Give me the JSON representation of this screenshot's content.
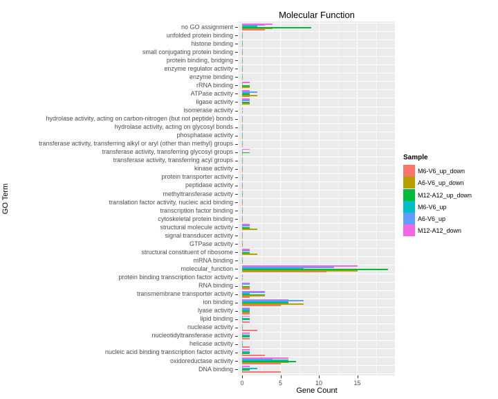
{
  "title": "Molecular Function",
  "axes": {
    "x_label": "Gene Count",
    "y_label": "GO Term",
    "x_major_ticks": [
      0,
      5,
      10,
      15
    ],
    "x_minor_ticks": [
      2.5,
      7.5,
      12.5,
      17.5
    ],
    "x_max": 19.95
  },
  "legend": {
    "title": "Sample"
  },
  "panel_background": "#EBEBEB",
  "gridline_color": "#FFFFFF",
  "tick_text_color": "#4d4d4d",
  "chart_data": {
    "type": "bar",
    "orientation": "horizontal",
    "title": "Molecular Function",
    "xlabel": "Gene Count",
    "ylabel": "GO Term",
    "xlim": [
      0,
      19.95
    ],
    "grid": "on",
    "legend_position": "right",
    "categories": [
      "no GO assignment",
      "unfolded protein binding",
      "histone binding",
      "small conjugating protein binding",
      "protein binding, bridging",
      "enzyme regulator activity",
      "enzyme binding",
      "rRNA binding",
      "ATPase activity",
      "ligase activity",
      "isomerase activity",
      "hydrolase activity, acting on carbon-nitrogen (but not peptide) bonds",
      "hydrolase activity, acting on glycosyl bonds",
      "phosphatase activity",
      "transferase activity, transferring alkyl or aryl (other than methyl) groups",
      "transferase activity, transferring glycosyl groups",
      "transferase activity, transferring acyl groups",
      "kinase activity",
      "protein transporter activity",
      "peptidase activity",
      "methyltransferase activity",
      "translation factor activity, nucleic acid binding",
      "transcription factor binding",
      "cytoskeletal protein binding",
      "structural molecule activity",
      "signal transducer activity",
      "GTPase activity",
      "structural constituent of ribosome",
      "mRNA binding",
      "molecular_function",
      "protein binding transcription factor activity",
      "RNA binding",
      "transmembrane transporter activity",
      "ion binding",
      "lyase activity",
      "lipid binding",
      "nuclease activity",
      "nucleotidyltransferase activity",
      "helicase activity",
      "nucleic acid binding transcription factor activity",
      "oxidoreductase activity",
      "DNA binding"
    ],
    "series": [
      {
        "name": "M6-V6_up_down",
        "color": "#F8766D",
        "values": [
          3,
          0,
          0,
          0,
          0,
          0,
          0,
          0,
          1,
          0,
          0,
          0,
          0,
          0,
          0,
          0,
          0,
          0,
          0,
          0,
          0,
          0,
          0,
          0,
          0,
          0,
          0,
          0,
          0,
          11,
          0,
          1,
          1,
          5,
          1,
          1,
          2,
          1,
          1,
          3,
          5,
          5
        ]
      },
      {
        "name": "A6-V6_up_down",
        "color": "#B79F00",
        "values": [
          4,
          0,
          0,
          0,
          0,
          0,
          0,
          1,
          2,
          1,
          0,
          0,
          0,
          0,
          0,
          0,
          0,
          0,
          0,
          0,
          0,
          0,
          0,
          0,
          2,
          0,
          0,
          2,
          0,
          15,
          0,
          1,
          3,
          8,
          1,
          0,
          0,
          0,
          0,
          0,
          6,
          0
        ]
      },
      {
        "name": "M12-A12_up_down",
        "color": "#00BA38",
        "values": [
          9,
          0,
          0,
          0,
          0,
          0,
          0,
          1,
          1,
          1,
          0,
          0,
          0,
          0,
          0,
          1,
          0,
          0,
          0,
          0,
          0,
          0,
          0,
          0,
          1,
          0,
          0,
          1,
          0,
          19,
          0,
          1,
          3,
          6,
          1,
          1,
          0,
          1,
          0,
          1,
          7,
          1
        ]
      },
      {
        "name": "M6-V6_up",
        "color": "#00BFC4",
        "values": [
          2,
          0,
          0,
          0,
          0,
          0,
          0,
          0,
          1,
          0,
          0,
          0,
          0,
          0,
          0,
          0,
          0,
          0,
          0,
          0,
          0,
          0,
          0,
          0,
          0,
          0,
          0,
          0,
          0,
          8,
          0,
          0,
          1,
          6,
          1,
          1,
          0,
          1,
          0,
          1,
          6,
          2
        ]
      },
      {
        "name": "A6-V6_up",
        "color": "#619CFF",
        "values": [
          3,
          0,
          0,
          0,
          0,
          0,
          0,
          0,
          2,
          1,
          0,
          0,
          0,
          0,
          0,
          0,
          0,
          0,
          0,
          0,
          0,
          0,
          0,
          0,
          1,
          0,
          0,
          1,
          0,
          12,
          0,
          1,
          3,
          8,
          1,
          0,
          0,
          0,
          0,
          0,
          4,
          0
        ]
      },
      {
        "name": "M12-A12_down",
        "color": "#F564E3",
        "values": [
          4,
          0,
          0,
          0,
          0,
          0,
          0,
          1,
          1,
          1,
          0,
          0,
          0,
          0,
          0,
          1,
          0,
          0,
          0,
          0,
          0,
          0,
          0,
          0,
          1,
          0,
          0,
          1,
          0,
          15,
          0,
          1,
          3,
          6,
          1,
          1,
          0,
          1,
          0,
          1,
          6,
          1
        ]
      }
    ]
  }
}
